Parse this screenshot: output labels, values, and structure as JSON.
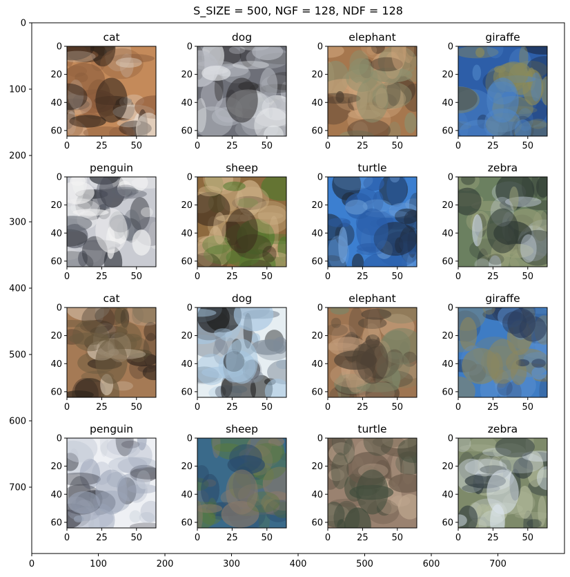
{
  "chart_data": {
    "type": "image-grid",
    "title": "S_SIZE = 500, NGF = 128, NDF = 128",
    "outer_axes": {
      "x_ticks": [
        0,
        100,
        200,
        300,
        400,
        500,
        600,
        700
      ],
      "y_ticks": [
        0,
        100,
        200,
        300,
        400,
        500,
        600,
        700
      ],
      "xlim": [
        0,
        800
      ],
      "ylim": [
        800,
        0
      ]
    },
    "subplot_axes": {
      "x_ticks": [
        0,
        25,
        50
      ],
      "y_ticks": [
        0,
        20,
        40,
        60
      ],
      "xlim": [
        0,
        64
      ],
      "ylim": [
        64,
        0
      ]
    },
    "panels": [
      {
        "label": "cat",
        "colors": [
          "#c48a5a",
          "#2a1f18",
          "#e7dcd0",
          "#8a5b3b"
        ]
      },
      {
        "label": "dog",
        "colors": [
          "#6d6f78",
          "#b9bcc4",
          "#2e2c2d",
          "#e9ecee"
        ]
      },
      {
        "label": "elephant",
        "colors": [
          "#a6774e",
          "#cda37a",
          "#4a3a2c",
          "#8c8f6e"
        ]
      },
      {
        "label": "giraffe",
        "colors": [
          "#2d5ea8",
          "#4f86c8",
          "#1c2d4e",
          "#8a8a5a"
        ]
      },
      {
        "label": "penguin",
        "colors": [
          "#c9cbd2",
          "#5c616c",
          "#f2f2f2",
          "#2c2f36"
        ]
      },
      {
        "label": "sheep",
        "colors": [
          "#8e6a3e",
          "#4f7a2e",
          "#d0b48a",
          "#3a2a1c"
        ]
      },
      {
        "label": "turtle",
        "colors": [
          "#3c7fd0",
          "#2a5da8",
          "#1f2a3a",
          "#6fa0d8"
        ]
      },
      {
        "label": "zebra",
        "colors": [
          "#6b8060",
          "#c8d2e0",
          "#2f3a34",
          "#9aa07a"
        ]
      },
      {
        "label": "cat",
        "colors": [
          "#a57a55",
          "#2e241c",
          "#d8c8b4",
          "#6a5a3e"
        ]
      },
      {
        "label": "dog",
        "colors": [
          "#e6eef2",
          "#a6c6e0",
          "#1e1e1e",
          "#7e8a98"
        ]
      },
      {
        "label": "elephant",
        "colors": [
          "#9e7552",
          "#c6a07e",
          "#4e4234",
          "#7e8466"
        ]
      },
      {
        "label": "giraffe",
        "colors": [
          "#3e7cc4",
          "#5a90d0",
          "#2a3c5c",
          "#8a8660"
        ]
      },
      {
        "label": "penguin",
        "colors": [
          "#eef0f4",
          "#9aa4b8",
          "#3c3e48",
          "#c6ccd8"
        ]
      },
      {
        "label": "sheep",
        "colors": [
          "#3a6a8a",
          "#5a7a3a",
          "#8a7a6a",
          "#2a4a6a"
        ]
      },
      {
        "label": "turtle",
        "colors": [
          "#9a8270",
          "#6a5a4a",
          "#c2aa92",
          "#3e4a3a"
        ]
      },
      {
        "label": "zebra",
        "colors": [
          "#7e8a6a",
          "#dde6f0",
          "#2e3a3e",
          "#b0b89a"
        ]
      }
    ]
  }
}
